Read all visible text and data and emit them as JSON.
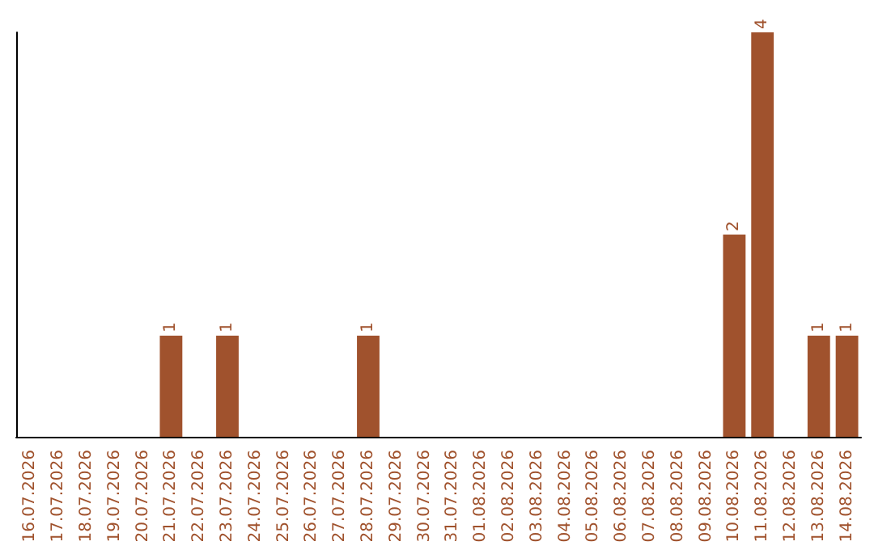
{
  "chart_data": {
    "type": "bar",
    "categories": [
      "16.07.2026",
      "17.07.2026",
      "18.07.2026",
      "19.07.2026",
      "20.07.2026",
      "21.07.2026",
      "22.07.2026",
      "23.07.2026",
      "24.07.2026",
      "25.07.2026",
      "26.07.2026",
      "27.07.2026",
      "28.07.2026",
      "29.07.2026",
      "30.07.2026",
      "31.07.2026",
      "01.08.2026",
      "02.08.2026",
      "03.08.2026",
      "04.08.2026",
      "05.08.2026",
      "06.08.2026",
      "07.08.2026",
      "08.08.2026",
      "09.08.2026",
      "10.08.2026",
      "11.08.2026",
      "12.08.2026",
      "13.08.2026",
      "14.08.2026"
    ],
    "values": [
      0,
      0,
      0,
      0,
      0,
      1,
      0,
      1,
      0,
      0,
      0,
      0,
      1,
      0,
      0,
      0,
      0,
      0,
      0,
      0,
      0,
      0,
      0,
      0,
      0,
      2,
      4,
      0,
      1,
      1
    ],
    "value_labels": [
      null,
      null,
      null,
      null,
      null,
      "1",
      null,
      "1",
      null,
      null,
      null,
      null,
      "1",
      null,
      null,
      null,
      null,
      null,
      null,
      null,
      null,
      null,
      null,
      null,
      null,
      "2",
      "4",
      null,
      "1",
      "1"
    ],
    "color": "#a0522d",
    "tick_labels": "x"
  }
}
